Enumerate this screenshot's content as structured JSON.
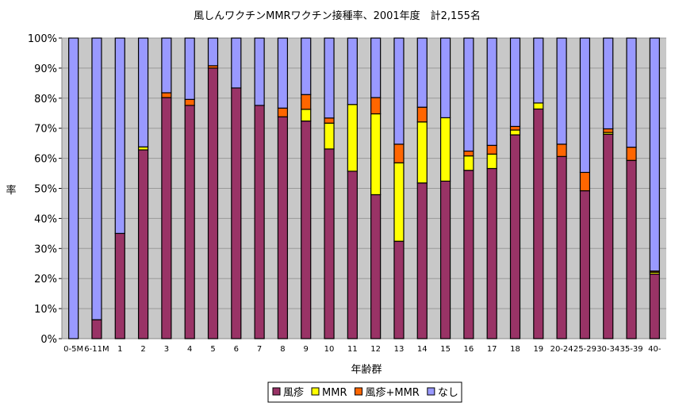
{
  "chart_data": {
    "type": "bar",
    "stacked": true,
    "title": "風しんワクチンMMRワクチン接種率、2001年度　計2,155名",
    "xlabel": "年齢群",
    "ylabel": "率",
    "ylim": [
      0,
      100
    ],
    "yticks": [
      "0%",
      "10%",
      "20%",
      "30%",
      "40%",
      "50%",
      "60%",
      "70%",
      "80%",
      "90%",
      "100%"
    ],
    "grid": true,
    "legend_position": "bottom",
    "categories": [
      "0-5M",
      "6-11M",
      "1",
      "2",
      "3",
      "4",
      "5",
      "6",
      "7",
      "8",
      "9",
      "10",
      "11",
      "12",
      "13",
      "14",
      "15",
      "16",
      "17",
      "18",
      "19",
      "20-24",
      "25-29",
      "30-34",
      "35-39",
      "40-"
    ],
    "series": [
      {
        "name": "風疹",
        "color": "#993366",
        "values": [
          0,
          6.3,
          35,
          62.8,
          80.2,
          77.6,
          90,
          83.4,
          77.6,
          73.8,
          72.4,
          63.1,
          55.7,
          47.9,
          32.4,
          51.8,
          52.4,
          56,
          56.6,
          67.8,
          76.4,
          60.6,
          49.2,
          68,
          59.3,
          21.5
        ]
      },
      {
        "name": "MMR",
        "color": "#ffff00",
        "values": [
          0,
          0,
          0,
          1,
          0,
          0,
          0,
          0,
          0,
          0,
          3.9,
          8.6,
          22.2,
          26.9,
          26.1,
          20.3,
          21.1,
          4.8,
          4.8,
          1.6,
          2,
          0,
          0,
          0.6,
          0,
          0.6
        ]
      },
      {
        "name": "風疹+MMR",
        "color": "#ff6600",
        "values": [
          0,
          0,
          0,
          0,
          1.6,
          2,
          0.8,
          0,
          0,
          2.9,
          4.9,
          1.7,
          0,
          5.4,
          6.2,
          4.9,
          0,
          1.6,
          2.9,
          1.2,
          0,
          4.1,
          6.1,
          1.2,
          4.4,
          0.4
        ]
      },
      {
        "name": "なし",
        "color": "#9999ff",
        "values": [
          100,
          93.7,
          65,
          36.2,
          18.2,
          20.4,
          9.2,
          16.6,
          22.4,
          23.3,
          18.8,
          26.6,
          22.1,
          19.8,
          35.3,
          23,
          26.5,
          37.6,
          35.7,
          29.4,
          21.6,
          35.3,
          44.7,
          30.2,
          36.3,
          77.5
        ]
      }
    ]
  }
}
